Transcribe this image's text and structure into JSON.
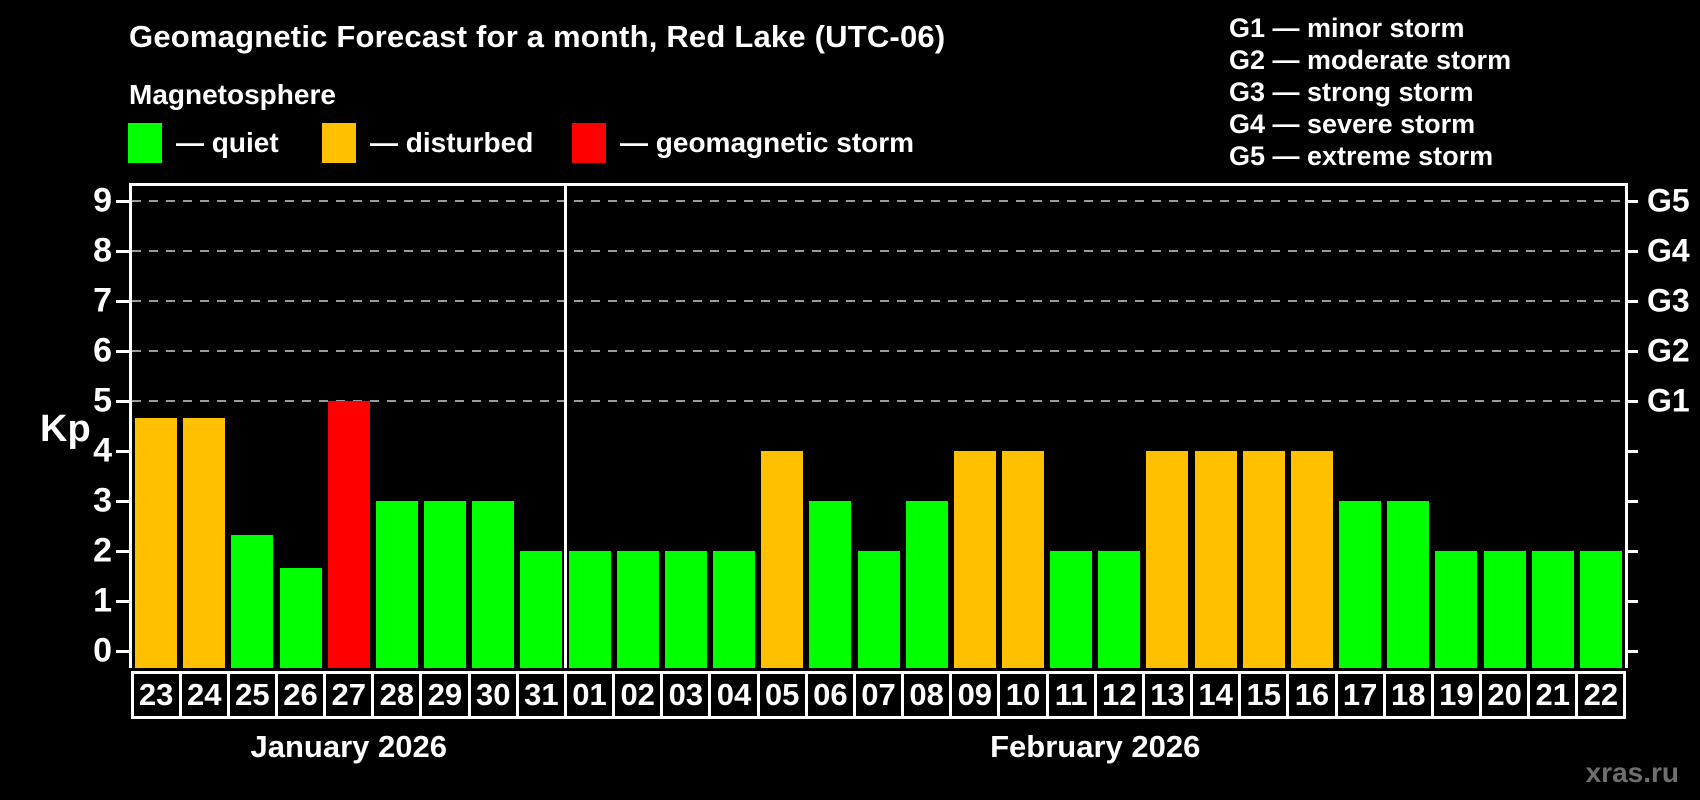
{
  "header": {
    "title": "Geomagnetic Forecast for a month, Red Lake (UTC-06)",
    "subtitle": "Magnetosphere"
  },
  "legend": {
    "items": [
      {
        "name": "quiet",
        "color": "#00ff00",
        "label": "— quiet"
      },
      {
        "name": "disturbed",
        "color": "#ffc000",
        "label": "— disturbed"
      },
      {
        "name": "storm",
        "color": "#ff0000",
        "label": "— geomagnetic storm"
      }
    ]
  },
  "g_scale_legend": {
    "items": [
      "G1 — minor storm",
      "G2 — moderate storm",
      "G3 — strong storm",
      "G4 — severe storm",
      "G5 — extreme storm"
    ]
  },
  "watermark": "xras.ru",
  "chart_data": {
    "type": "bar",
    "title": "Geomagnetic Forecast for a month, Red Lake (UTC-06)",
    "subtitle": "Magnetosphere",
    "ylabel": "Kp",
    "ylim": [
      0,
      9
    ],
    "yticks": [
      0,
      1,
      2,
      3,
      4,
      5,
      6,
      7,
      8,
      9
    ],
    "gridlines_at": [
      5,
      6,
      7,
      8,
      9
    ],
    "grid": "dashed gray horizontal lines at Kp 5-9 only",
    "legend_position": "top-left",
    "right_axis": [
      {
        "label": "G1",
        "kp": 5
      },
      {
        "label": "G2",
        "kp": 6
      },
      {
        "label": "G3",
        "kp": 7
      },
      {
        "label": "G4",
        "kp": 8
      },
      {
        "label": "G5",
        "kp": 9
      }
    ],
    "colors": {
      "quiet": "#00ff00",
      "disturbed": "#ffc000",
      "storm": "#ff0000"
    },
    "months": [
      {
        "label": "January 2026",
        "days": 9
      },
      {
        "label": "February 2026",
        "days": 22
      }
    ],
    "bars": [
      {
        "day": "23",
        "month": "January 2026",
        "value": 4.67,
        "status": "disturbed"
      },
      {
        "day": "24",
        "month": "January 2026",
        "value": 4.67,
        "status": "disturbed"
      },
      {
        "day": "25",
        "month": "January 2026",
        "value": 2.33,
        "status": "quiet"
      },
      {
        "day": "26",
        "month": "January 2026",
        "value": 1.67,
        "status": "quiet"
      },
      {
        "day": "27",
        "month": "January 2026",
        "value": 5.0,
        "status": "storm"
      },
      {
        "day": "28",
        "month": "January 2026",
        "value": 3.0,
        "status": "quiet"
      },
      {
        "day": "29",
        "month": "January 2026",
        "value": 3.0,
        "status": "quiet"
      },
      {
        "day": "30",
        "month": "January 2026",
        "value": 3.0,
        "status": "quiet"
      },
      {
        "day": "31",
        "month": "January 2026",
        "value": 2.0,
        "status": "quiet"
      },
      {
        "day": "01",
        "month": "February 2026",
        "value": 2.0,
        "status": "quiet"
      },
      {
        "day": "02",
        "month": "February 2026",
        "value": 2.0,
        "status": "quiet"
      },
      {
        "day": "03",
        "month": "February 2026",
        "value": 2.0,
        "status": "quiet"
      },
      {
        "day": "04",
        "month": "February 2026",
        "value": 2.0,
        "status": "quiet"
      },
      {
        "day": "05",
        "month": "February 2026",
        "value": 4.0,
        "status": "disturbed"
      },
      {
        "day": "06",
        "month": "February 2026",
        "value": 3.0,
        "status": "quiet"
      },
      {
        "day": "07",
        "month": "February 2026",
        "value": 2.0,
        "status": "quiet"
      },
      {
        "day": "08",
        "month": "February 2026",
        "value": 3.0,
        "status": "quiet"
      },
      {
        "day": "09",
        "month": "February 2026",
        "value": 4.0,
        "status": "disturbed"
      },
      {
        "day": "10",
        "month": "February 2026",
        "value": 4.0,
        "status": "disturbed"
      },
      {
        "day": "11",
        "month": "February 2026",
        "value": 2.0,
        "status": "quiet"
      },
      {
        "day": "12",
        "month": "February 2026",
        "value": 2.0,
        "status": "quiet"
      },
      {
        "day": "13",
        "month": "February 2026",
        "value": 4.0,
        "status": "disturbed"
      },
      {
        "day": "14",
        "month": "February 2026",
        "value": 4.0,
        "status": "disturbed"
      },
      {
        "day": "15",
        "month": "February 2026",
        "value": 4.0,
        "status": "disturbed"
      },
      {
        "day": "16",
        "month": "February 2026",
        "value": 4.0,
        "status": "disturbed"
      },
      {
        "day": "17",
        "month": "February 2026",
        "value": 3.0,
        "status": "quiet"
      },
      {
        "day": "18",
        "month": "February 2026",
        "value": 3.0,
        "status": "quiet"
      },
      {
        "day": "19",
        "month": "February 2026",
        "value": 2.0,
        "status": "quiet"
      },
      {
        "day": "20",
        "month": "February 2026",
        "value": 2.0,
        "status": "quiet"
      },
      {
        "day": "21",
        "month": "February 2026",
        "value": 2.0,
        "status": "quiet"
      },
      {
        "day": "22",
        "month": "February 2026",
        "value": 2.0,
        "status": "quiet"
      }
    ]
  }
}
